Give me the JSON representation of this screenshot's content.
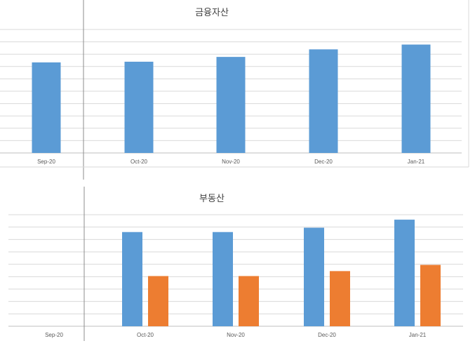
{
  "chart_data": [
    {
      "type": "bar",
      "title": "금융자산",
      "categories": [
        "Sep-20",
        "Oct-20",
        "Nov-20",
        "Dec-20",
        "Jan-21"
      ],
      "series": [
        {
          "values": [
            6.6,
            6.65,
            7.0,
            7.55,
            7.9
          ]
        }
      ],
      "ylim": [
        0,
        9
      ],
      "grid": true,
      "colors": [
        "#5b9bd5"
      ]
    },
    {
      "type": "bar",
      "title": "부동산",
      "categories": [
        "Sep-20",
        "Oct-20",
        "Nov-20",
        "Dec-20",
        "Jan-21"
      ],
      "series": [
        {
          "values": [
            0,
            7.6,
            7.6,
            7.95,
            8.6
          ]
        },
        {
          "values": [
            0,
            4.05,
            4.05,
            4.45,
            4.95
          ]
        }
      ],
      "ylim": [
        0,
        9
      ],
      "grid": true,
      "colors": [
        "#5b9bd5",
        "#ed7d31"
      ]
    }
  ]
}
